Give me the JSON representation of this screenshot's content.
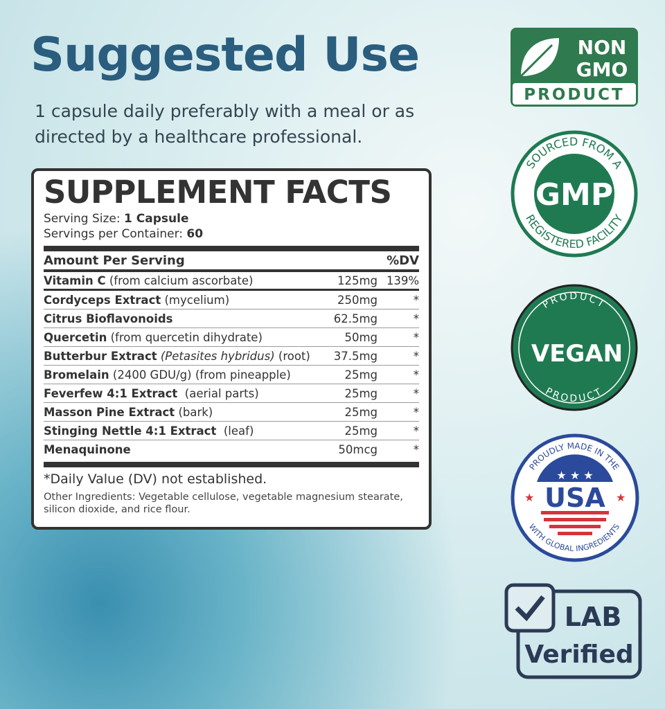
{
  "heading": "Suggested Use",
  "directions": [
    "1 capsule daily preferably with a meal or as",
    "directed by a healthcare professional."
  ],
  "facts": {
    "title": "SUPPLEMENT FACTS",
    "serving_size_label": "Serving Size:",
    "serving_size": "1 Capsule",
    "servings_label": "Servings per Container:",
    "servings": "60",
    "header_amount": "Amount Per Serving",
    "header_dv": "%DV",
    "rows": [
      {
        "name": "Vitamin C",
        "detail": " (from calcium ascorbate)",
        "amount": "125mg",
        "dv": "139%"
      },
      {
        "name": "Cordyceps Extract",
        "detail": " (mycelium)",
        "amount": "250mg",
        "dv": "*"
      },
      {
        "name": "Citrus Bioflavonoids",
        "detail": "",
        "amount": "62.5mg",
        "dv": "*"
      },
      {
        "name": "Quercetin",
        "detail": " (from quercetin dihydrate)",
        "amount": "50mg",
        "dv": "*"
      },
      {
        "name": "Butterbur Extract",
        "italic": " (Petasites hybridus)",
        "detail": " (root)",
        "amount": "37.5mg",
        "dv": "*"
      },
      {
        "name": "Bromelain",
        "detail": " (2400 GDU/g) (from pineapple)",
        "amount": "25mg",
        "dv": "*"
      },
      {
        "name": "Feverfew 4:1 Extract",
        "detail": "  (aerial parts)",
        "amount": "25mg",
        "dv": "*"
      },
      {
        "name": "Masson Pine Extract",
        "detail": " (bark)",
        "amount": "25mg",
        "dv": "*"
      },
      {
        "name": "Stinging Nettle 4:1 Extract",
        "detail": "  (leaf)",
        "amount": "25mg",
        "dv": "*"
      },
      {
        "name": "Menaquinone",
        "detail": "",
        "amount": "50mcg",
        "dv": "*"
      }
    ],
    "footnote": "*Daily Value (DV) not established.",
    "other_ingredients": "Other Ingredients: Vegetable cellulose, vegetable magnesium stearate, silicon dioxide, and rice flour."
  },
  "badges": {
    "nongmo": {
      "line1": "NON",
      "line2": "GMO",
      "line3": "PRODUCT",
      "color": "#2f7a4e"
    },
    "gmp": {
      "top": "SOURCED FROM A",
      "center": "GMP",
      "bottom": "REGISTERED FACILITY",
      "color": "#1f7a52"
    },
    "vegan": {
      "top": "PRODUCT",
      "center": "VEGAN",
      "bottom": "PRODUCT",
      "color": "#1f7a52"
    },
    "usa": {
      "top": "PROUDLY MADE IN THE",
      "center": "USA",
      "bottom": "WITH GLOBAL INGREDIENTS",
      "color": "#2b4a9b",
      "accent": "#d6333a"
    },
    "lab": {
      "line1": "LAB",
      "line2": "Verified",
      "color": "#2b3a55"
    }
  }
}
